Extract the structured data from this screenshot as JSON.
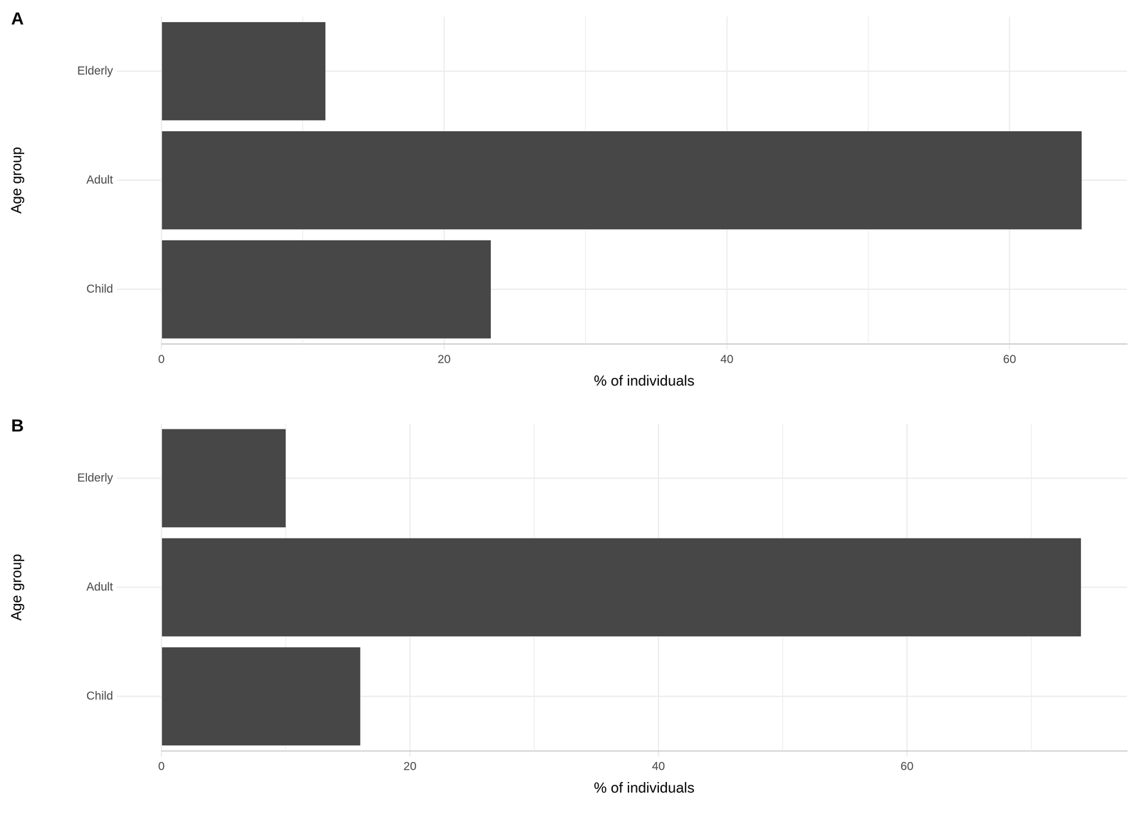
{
  "chart_data": [
    {
      "type": "bar",
      "orientation": "horizontal",
      "title": "A",
      "xlabel": "% of individuals",
      "ylabel": "Age group",
      "categories": [
        "Elderly",
        "Adult",
        "Child"
      ],
      "values": [
        11.6,
        65.1,
        23.3
      ],
      "color": "#474747",
      "xlim": [
        0,
        68.3
      ],
      "xticks": [
        0,
        20,
        40,
        60
      ],
      "grid": true
    },
    {
      "type": "bar",
      "orientation": "horizontal",
      "title": "B",
      "xlabel": "% of individuals",
      "ylabel": "Age group",
      "categories": [
        "Elderly",
        "Adult",
        "Child"
      ],
      "values": [
        10.0,
        74.0,
        16.0
      ],
      "color": "#474747",
      "xlim": [
        0,
        77.7
      ],
      "xticks": [
        0,
        20,
        40,
        60
      ],
      "grid": true
    }
  ]
}
